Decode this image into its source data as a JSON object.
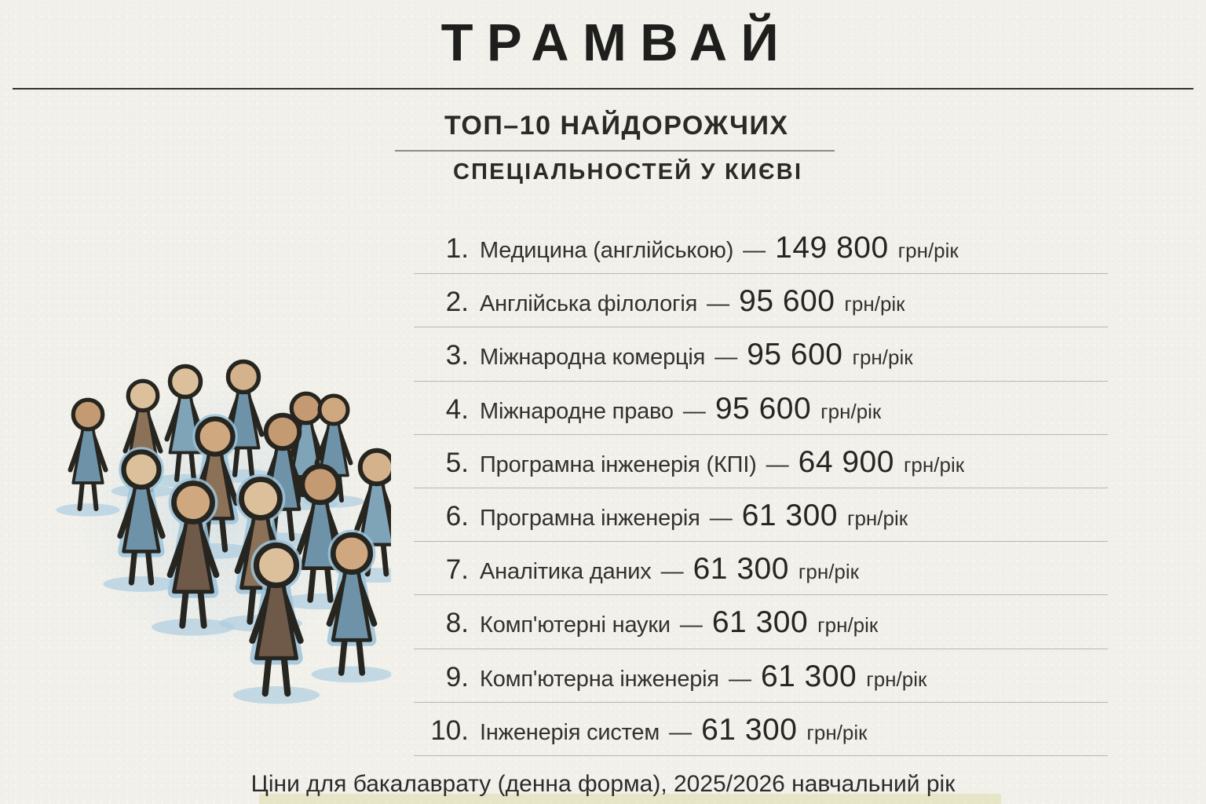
{
  "header": {
    "title": "ТРАМВАЙ"
  },
  "subtitle": {
    "line1": "ТОП–10 НАЙДОРОЖЧИХ",
    "line2": "СПЕЦІАЛЬНОСТЕЙ У КИЄВІ"
  },
  "list": {
    "separator": "—",
    "items": [
      {
        "rank": "1.",
        "label": "Медицина (англійською)",
        "price": "149 800",
        "unit": "грн/рік"
      },
      {
        "rank": "2.",
        "label": "Англійська філологія",
        "price": "95 600",
        "unit": "грн/рік"
      },
      {
        "rank": "3.",
        "label": "Міжнародна комерція",
        "price": "95 600",
        "unit": "грн/рік"
      },
      {
        "rank": "4.",
        "label": "Міжнародне право",
        "price": "95 600",
        "unit": "грн/рік"
      },
      {
        "rank": "5.",
        "label": "Програмна інженерія (КПІ)",
        "price": "64 900",
        "unit": "грн/рік"
      },
      {
        "rank": "6.",
        "label": "Програмна інженерія",
        "price": "61 300",
        "unit": "грн/рік"
      },
      {
        "rank": "7.",
        "label": "Аналітика даних",
        "price": "61 300",
        "unit": "грн/рік"
      },
      {
        "rank": "8.",
        "label": "Комп'ютерні науки",
        "price": "61 300",
        "unit": "грн/рік"
      },
      {
        "rank": "9.",
        "label": "Комп'ютерна інженерія",
        "price": "61 300",
        "unit": "грн/рік"
      },
      {
        "rank": "10.",
        "label": "Інженерія систем",
        "price": "61 300",
        "unit": "грн/рік"
      }
    ]
  },
  "footer": {
    "note": "Ціни для бакалаврату (денна форма), 2025/2026 навчальний рік"
  },
  "illustration": {
    "name": "crowd-of-students",
    "palette": {
      "outline": "#26251f",
      "halo": "#9cc3da",
      "shadow": "#aecde0",
      "heads": [
        "#cfa87f",
        "#dcc09c",
        "#c49a72",
        "#d4b28c"
      ],
      "bodies_blue": [
        "#6e93a9",
        "#7fa3b7"
      ],
      "bodies_brown": [
        "#8a7158",
        "#6f5948"
      ]
    }
  },
  "colors": {
    "background": "#f1f0ea",
    "text": "#262624",
    "divider": "#b9b7b0",
    "title_rule": "#34332f",
    "subtitle_rule": "#8d8b85",
    "footer_highlight": "#dedDac"
  }
}
